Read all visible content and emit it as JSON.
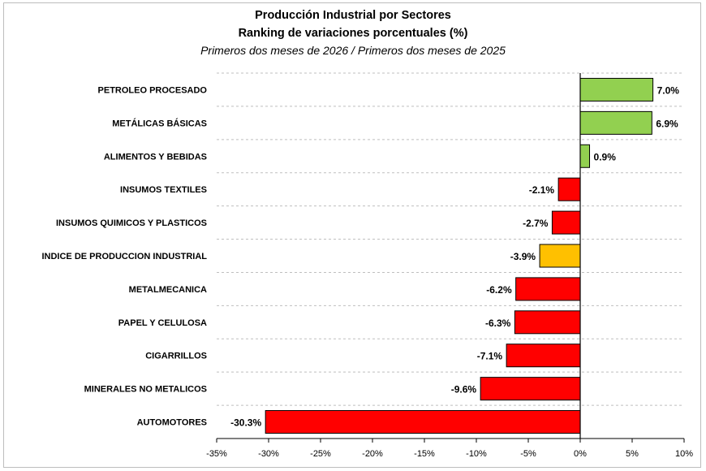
{
  "chart_data": {
    "type": "bar",
    "orientation": "horizontal",
    "title": "Producción Industrial por Sectores",
    "title_line2": "Ranking de variaciones porcentuales (%)",
    "subtitle": "Primeros dos meses de 2026 / Primeros dos meses de 2025",
    "xlim": [
      -35,
      10
    ],
    "x_ticks": [
      -35,
      -30,
      -25,
      -20,
      -15,
      -10,
      -5,
      0,
      5,
      10
    ],
    "x_tick_labels": [
      "-35%",
      "-30%",
      "-25%",
      "-20%",
      "-15%",
      "-10%",
      "-5%",
      "0%",
      "5%",
      "10%"
    ],
    "grid": "horizontal dashed",
    "legend": "none",
    "categories": [
      "PETROLEO PROCESADO",
      "METÁLICAS BÁSICAS",
      "ALIMENTOS Y BEBIDAS",
      "INSUMOS TEXTILES",
      "INSUMOS QUIMICOS Y PLASTICOS",
      "INDICE DE PRODUCCION INDUSTRIAL",
      "METALMECANICA",
      "PAPEL Y CELULOSA",
      "CIGARRILLOS",
      "MINERALES NO METALICOS",
      "AUTOMOTORES"
    ],
    "values": [
      7.0,
      6.9,
      0.9,
      -2.1,
      -2.7,
      -3.9,
      -6.2,
      -6.3,
      -7.1,
      -9.6,
      -30.3
    ],
    "value_labels": [
      "7.0%",
      "6.9%",
      "0.9%",
      "-2.1%",
      "-2.7%",
      "-3.9%",
      "-6.2%",
      "-6.3%",
      "-7.1%",
      "-9.6%",
      "-30.3%"
    ],
    "colors": [
      "#92d050",
      "#92d050",
      "#92d050",
      "#ff0000",
      "#ff0000",
      "#ffc000",
      "#ff0000",
      "#ff0000",
      "#ff0000",
      "#ff0000",
      "#ff0000"
    ],
    "bar_border_color": "#000000"
  }
}
